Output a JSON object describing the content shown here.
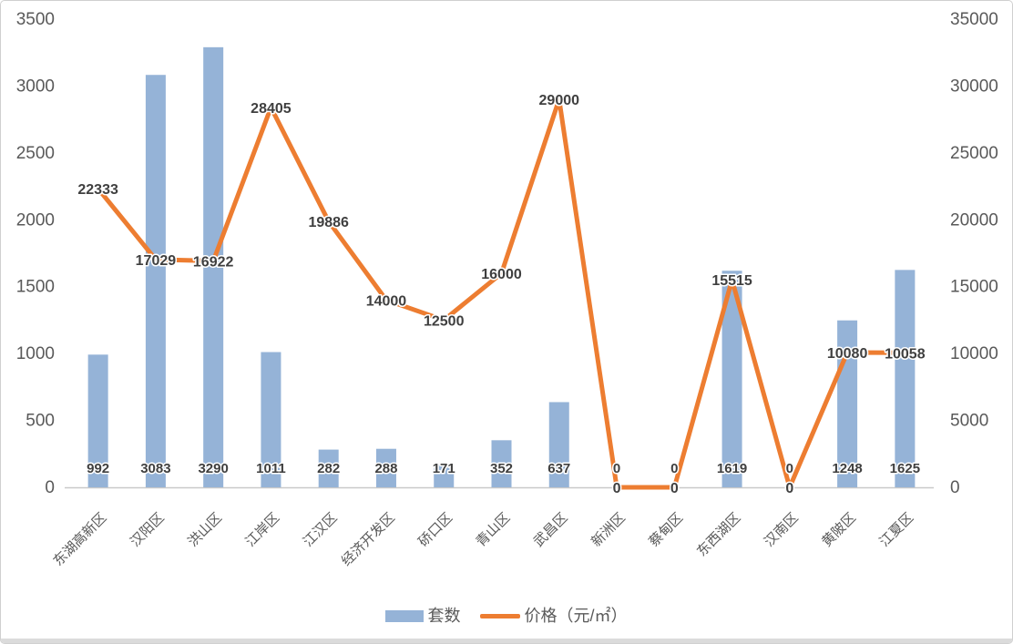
{
  "chart_data": {
    "type": "combo-bar-line",
    "title": "",
    "grid": false,
    "legend_position": "bottom",
    "categories": [
      "东湖高新区",
      "汉阳区",
      "洪山区",
      "江岸区",
      "江汉区",
      "经济开发区",
      "硚口区",
      "青山区",
      "武昌区",
      "新洲区",
      "蔡甸区",
      "东西湖区",
      "汉南区",
      "黄陂区",
      "江夏区"
    ],
    "series": [
      {
        "name": "套数",
        "type": "bar",
        "axis": "left",
        "color": "#95B3D7",
        "values": [
          992,
          3083,
          3290,
          1011,
          282,
          288,
          171,
          352,
          637,
          0,
          0,
          1619,
          0,
          1248,
          1625
        ]
      },
      {
        "name": "价格（元/㎡）",
        "type": "line",
        "axis": "right",
        "color": "#ED7D31",
        "values": [
          22333,
          17029,
          16922,
          28405,
          19886,
          14000,
          12500,
          16000,
          29000,
          0,
          0,
          15515,
          0,
          10080,
          10058
        ]
      }
    ],
    "left_axis": {
      "min": 0,
      "max": 3500,
      "step": 500,
      "ticks": [
        0,
        500,
        1000,
        1500,
        2000,
        2500,
        3000,
        3500
      ]
    },
    "right_axis": {
      "min": 0,
      "max": 35000,
      "step": 5000,
      "ticks": [
        0,
        5000,
        10000,
        15000,
        20000,
        25000,
        30000,
        35000
      ]
    }
  },
  "legend": {
    "items": [
      {
        "label": "套数",
        "color": "#95B3D7",
        "shape": "rect"
      },
      {
        "label": "价格（元/㎡）",
        "color": "#ED7D31",
        "shape": "line"
      }
    ]
  },
  "colors": {
    "bar": "#95B3D7",
    "line": "#ED7D31",
    "data_label": "#3F3F3F",
    "axis_text": "#595959",
    "axis_line": "#C9C9C9",
    "frame_border": "#D0D0D0",
    "frame_shadow": "#DBDBDB",
    "background": "#FFFFFF"
  }
}
